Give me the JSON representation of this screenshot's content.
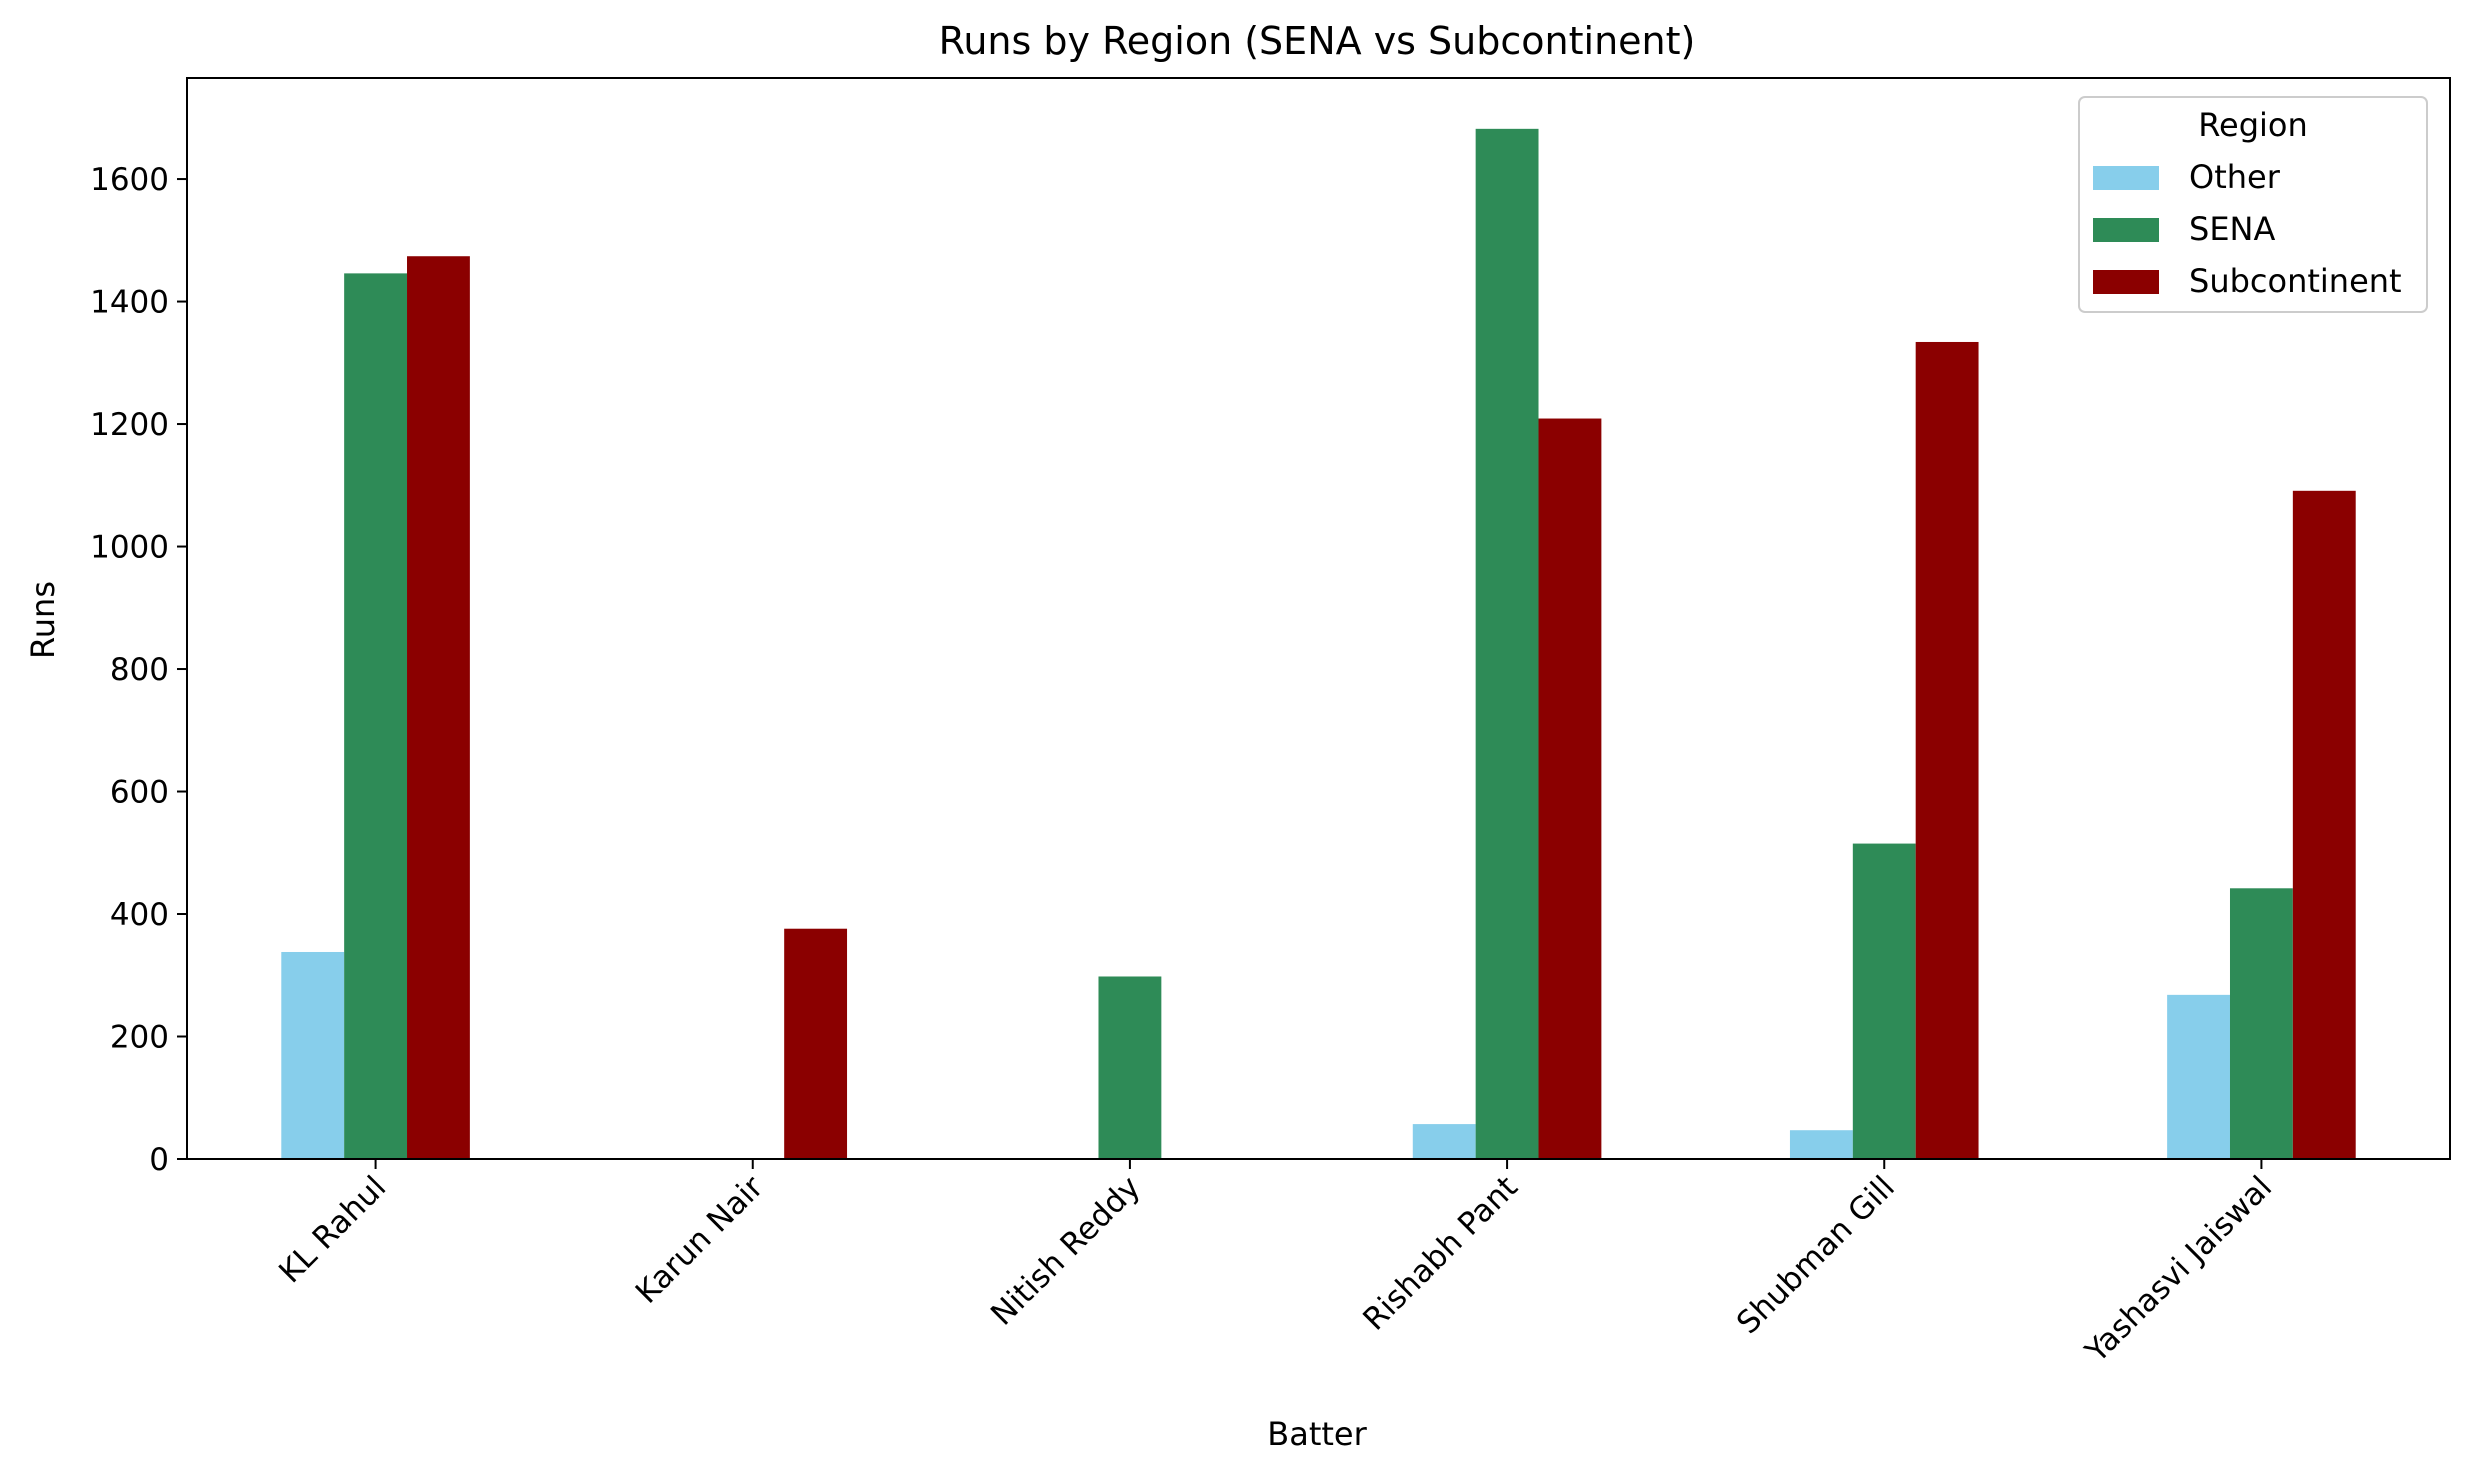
{
  "chart_data": {
    "type": "bar",
    "title": "Runs by Region (SENA vs Subcontinent)",
    "xlabel": "Batter",
    "ylabel": "Runs",
    "categories": [
      "KL Rahul",
      "Karun Nair",
      "Nitish Reddy",
      "Rishabh Pant",
      "Shubman Gill",
      "Yashasvi Jaiswal"
    ],
    "series": [
      {
        "name": "Other",
        "color": "#87ceeb",
        "values": [
          338,
          0,
          0,
          57,
          47,
          268
        ]
      },
      {
        "name": "SENA",
        "color": "#2e8b57",
        "values": [
          1446,
          0,
          298,
          1682,
          515,
          442
        ]
      },
      {
        "name": "Subcontinent",
        "color": "#8b0000",
        "values": [
          1474,
          376,
          0,
          1209,
          1334,
          1091
        ]
      }
    ],
    "ylim": [
      0,
      1765
    ],
    "yticks": [
      0,
      200,
      400,
      600,
      800,
      1000,
      1200,
      1400,
      1600
    ],
    "legend": {
      "title": "Region",
      "placement": "top-right"
    },
    "grid": false
  }
}
